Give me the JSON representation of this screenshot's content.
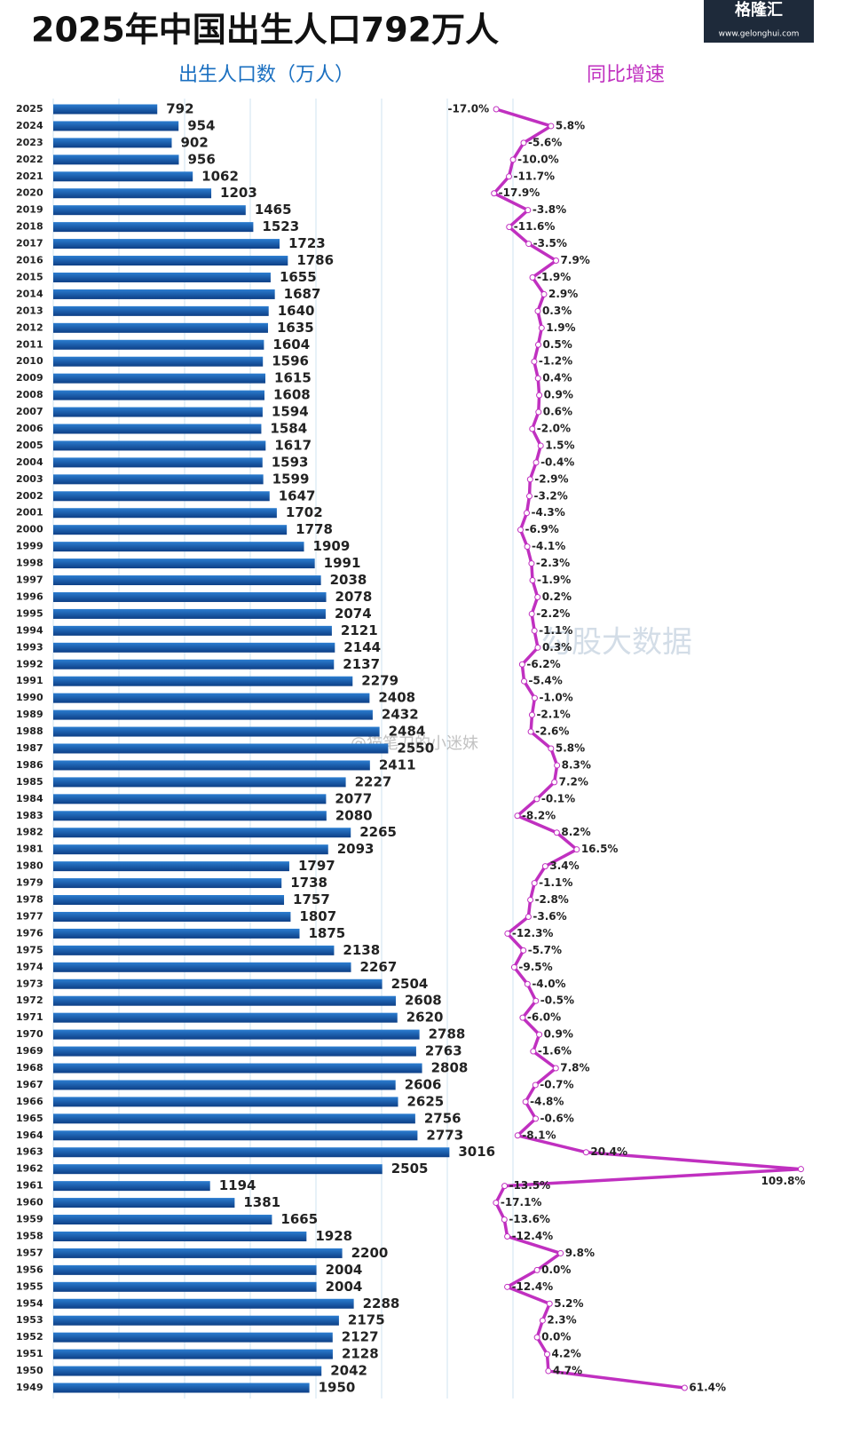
{
  "chart_data": {
    "type": "bar",
    "orientation": "horizontal",
    "title": "2025年中国出生人口792万人",
    "categories": [
      "2025",
      "2024",
      "2023",
      "2022",
      "2021",
      "2020",
      "2019",
      "2018",
      "2017",
      "2016",
      "2015",
      "2014",
      "2013",
      "2012",
      "2011",
      "2010",
      "2009",
      "2008",
      "2007",
      "2006",
      "2005",
      "2004",
      "2003",
      "2002",
      "2001",
      "2000",
      "1999",
      "1998",
      "1997",
      "1996",
      "1995",
      "1994",
      "1993",
      "1992",
      "1991",
      "1990",
      "1989",
      "1988",
      "1987",
      "1986",
      "1985",
      "1984",
      "1983",
      "1982",
      "1981",
      "1980",
      "1979",
      "1978",
      "1977",
      "1976",
      "1975",
      "1974",
      "1973",
      "1972",
      "1971",
      "1970",
      "1969",
      "1968",
      "1967",
      "1966",
      "1965",
      "1964",
      "1963",
      "1962",
      "1961",
      "1960",
      "1959",
      "1958",
      "1957",
      "1956",
      "1955",
      "1954",
      "1953",
      "1952",
      "1951",
      "1950",
      "1949"
    ],
    "series": [
      {
        "name": "出生人口数（万人）",
        "type": "bar",
        "color": "#1a5fa8",
        "values": [
          792,
          954,
          902,
          956,
          1062,
          1203,
          1465,
          1523,
          1723,
          1786,
          1655,
          1687,
          1640,
          1635,
          1604,
          1596,
          1615,
          1608,
          1594,
          1584,
          1617,
          1593,
          1599,
          1647,
          1702,
          1778,
          1909,
          1991,
          2038,
          2078,
          2074,
          2121,
          2144,
          2137,
          2279,
          2408,
          2432,
          2484,
          2550,
          2411,
          2227,
          2077,
          2080,
          2265,
          2093,
          1797,
          1738,
          1757,
          1807,
          1875,
          2138,
          2267,
          2504,
          2608,
          2620,
          2788,
          2763,
          2808,
          2606,
          2625,
          2756,
          2773,
          3016,
          2505,
          1194,
          1381,
          1665,
          1928,
          2200,
          2004,
          2004,
          2288,
          2175,
          2127,
          2128,
          2042,
          1950
        ]
      },
      {
        "name": "同比增速",
        "type": "line",
        "axis": "x2",
        "color": "#c030c0",
        "values": [
          -17.0,
          5.8,
          -5.6,
          -10.0,
          -11.7,
          -17.9,
          -3.8,
          -11.6,
          -3.5,
          7.9,
          -1.9,
          2.9,
          0.3,
          1.9,
          0.5,
          -1.2,
          0.4,
          0.9,
          0.6,
          -2.0,
          1.5,
          -0.4,
          -2.9,
          -3.2,
          -4.3,
          -6.9,
          -4.1,
          -2.3,
          -1.9,
          0.2,
          -2.2,
          -1.1,
          0.3,
          -6.2,
          -5.4,
          -1.0,
          -2.1,
          -2.6,
          5.8,
          8.3,
          7.2,
          -0.1,
          -8.2,
          8.2,
          16.5,
          3.4,
          -1.1,
          -2.8,
          -3.6,
          -12.3,
          -5.7,
          -9.5,
          -4.0,
          -0.5,
          -6.0,
          0.9,
          -1.6,
          7.8,
          -0.7,
          -4.8,
          -0.6,
          -8.1,
          20.4,
          109.8,
          -13.5,
          -17.1,
          -13.6,
          -12.4,
          9.8,
          0.0,
          -12.4,
          5.2,
          2.3,
          0.0,
          4.2,
          4.7,
          61.4
        ],
        "value_labels": [
          "-17.0%",
          "5.8%",
          "-5.6%",
          "-10.0%",
          "-11.7%",
          "-17.9%",
          "-3.8%",
          "-11.6%",
          "-3.5%",
          "7.9%",
          "-1.9%",
          "2.9%",
          "0.3%",
          "1.9%",
          "0.5%",
          "-1.2%",
          "0.4%",
          "0.9%",
          "0.6%",
          "-2.0%",
          "1.5%",
          "-0.4%",
          "-2.9%",
          "-3.2%",
          "-4.3%",
          "-6.9%",
          "-4.1%",
          "-2.3%",
          "-1.9%",
          "0.2%",
          "-2.2%",
          "-1.1%",
          "0.3%",
          "-6.2%",
          "-5.4%",
          "-1.0%",
          "-2.1%",
          "-2.6%",
          "5.8%",
          "8.3%",
          "7.2%",
          "-0.1%",
          "-8.2%",
          "8.2%",
          "16.5%",
          "3.4%",
          "-1.1%",
          "-2.8%",
          "-3.6%",
          "-12.3%",
          "-5.7%",
          "-9.5%",
          "-4.0%",
          "-0.5%",
          "-6.0%",
          "0.9%",
          "-1.6%",
          "7.8%",
          "-0.7%",
          "-4.8%",
          "-0.6%",
          "-8.1%",
          "20.4%",
          "109.8%",
          "-13.5%",
          "-17.1%",
          "-13.6%",
          "-12.4%",
          "9.8%",
          "0.0%",
          "-12.4%",
          "5.2%",
          "2.3%",
          "0.0%",
          "4.2%",
          "4.7%",
          "61.4%"
        ]
      }
    ],
    "xlim": [
      0,
      3500
    ],
    "xticks": [
      0,
      500,
      1000,
      1500,
      2000,
      2500,
      3000,
      3500
    ],
    "x2lim": [
      -20,
      110
    ],
    "grid": true
  },
  "logo": {
    "name": "格隆汇",
    "url": "www.gelonghui.com"
  },
  "watermark": [
    "勾股大数据",
    "@猫笔刀的小迷妹"
  ]
}
